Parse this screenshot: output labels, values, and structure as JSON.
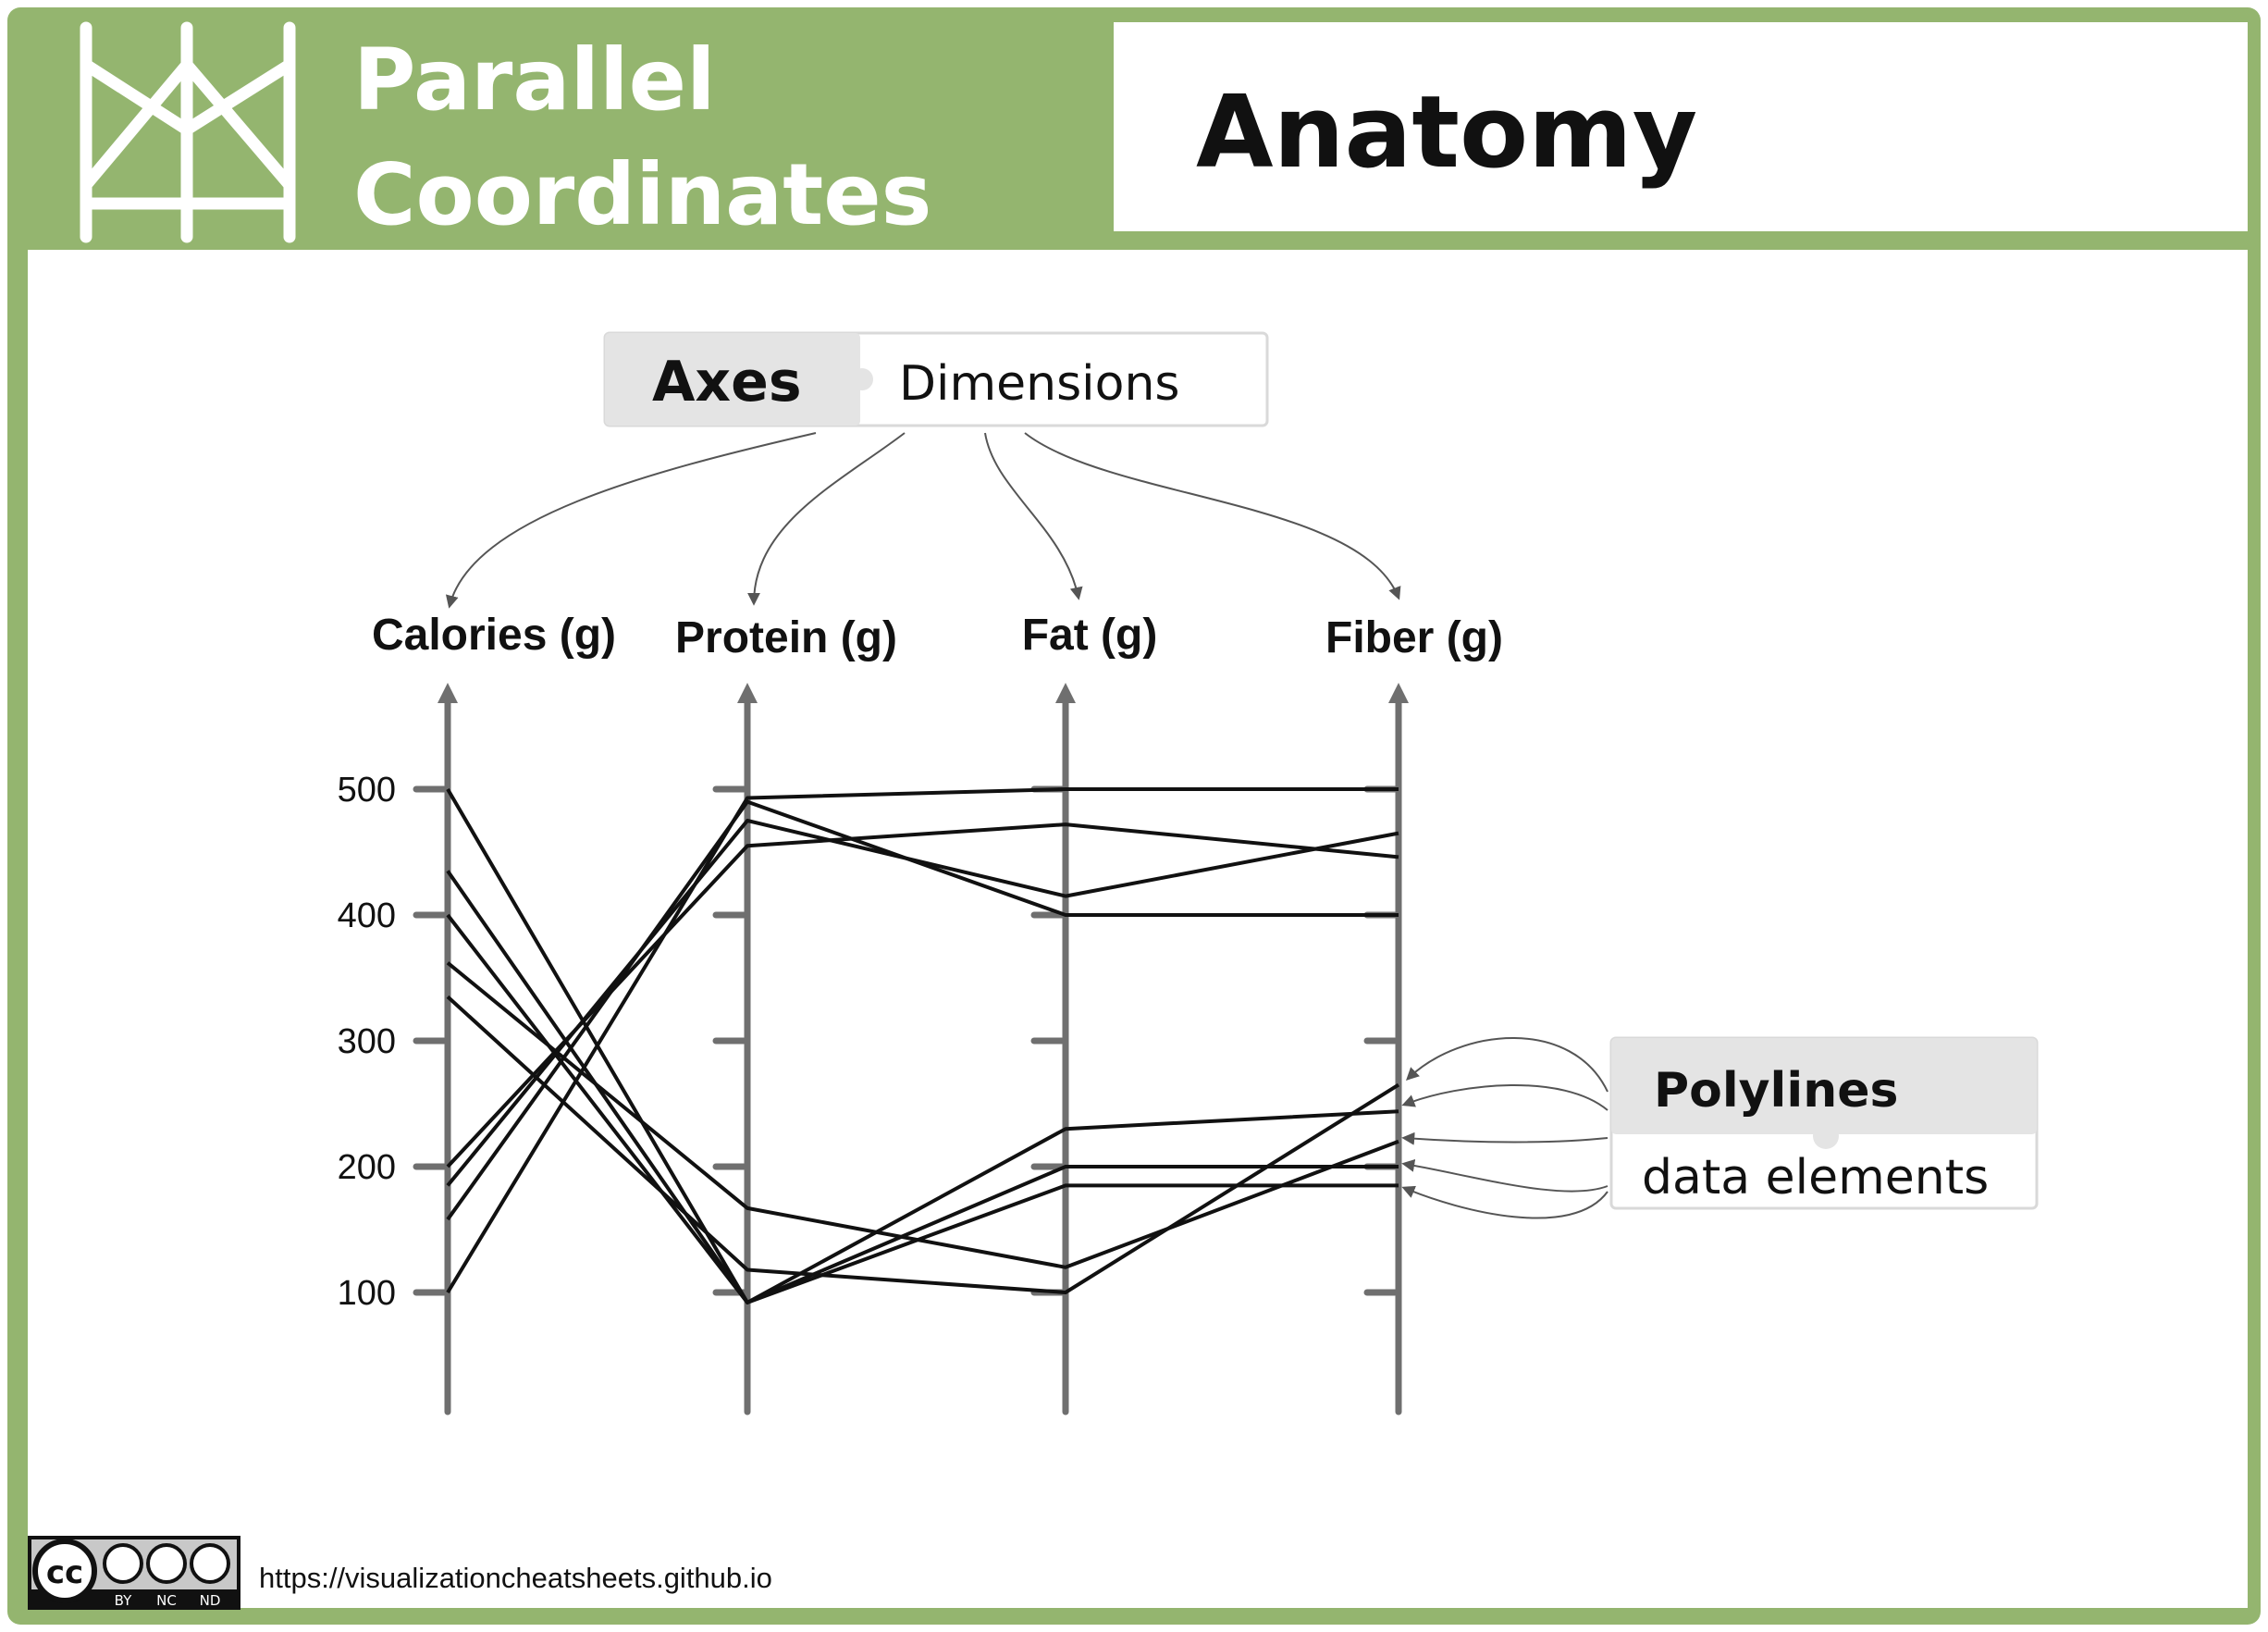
{
  "header": {
    "title_line1": "Parallel",
    "title_line2": "Coordinates",
    "subtitle": "Anatomy"
  },
  "annotations": {
    "axes": {
      "term": "Axes",
      "definition": "Dimensions"
    },
    "polylines": {
      "term": "Polylines",
      "definition": "data elements"
    }
  },
  "footer": {
    "url": "https://visualizationcheatsheets.github.io",
    "license_labels": [
      "BY",
      "NC",
      "ND"
    ]
  },
  "colors": {
    "frame_green": "#94b56f",
    "axis_gray": "#6f6f6f",
    "polyline": "#111111",
    "annotation_fill": "#e4e4e4",
    "arrow_gray": "#555555"
  },
  "chart_data": {
    "type": "parallel-coordinates",
    "axes": [
      {
        "name": "Calories (g)",
        "ticks": [
          100,
          200,
          300,
          400,
          500
        ],
        "tick_labels": [
          "100",
          "200",
          "300",
          "400",
          "500"
        ]
      },
      {
        "name": "Protein (g)",
        "ticks": [
          100,
          200,
          300,
          400,
          500
        ],
        "tick_labels": []
      },
      {
        "name": "Fat (g)",
        "ticks": [
          100,
          200,
          300,
          400,
          500
        ],
        "tick_labels": []
      },
      {
        "name": "Fiber (g)",
        "ticks": [
          100,
          200,
          300,
          400,
          500
        ],
        "tick_labels": []
      }
    ],
    "scale": [
      100,
      500
    ],
    "polylines": [
      {
        "values": [
          500,
          92,
          230,
          244
        ]
      },
      {
        "values": [
          435,
          92,
          200,
          200
        ]
      },
      {
        "values": [
          400,
          92,
          185,
          185
        ]
      },
      {
        "values": [
          362,
          167,
          120,
          220
        ]
      },
      {
        "values": [
          335,
          118,
          100,
          265
        ]
      },
      {
        "values": [
          200,
          455,
          472,
          446
        ]
      },
      {
        "values": [
          185,
          475,
          415,
          465
        ]
      },
      {
        "values": [
          158,
          490,
          400,
          400
        ]
      },
      {
        "values": [
          100,
          493,
          500,
          500
        ]
      }
    ]
  }
}
